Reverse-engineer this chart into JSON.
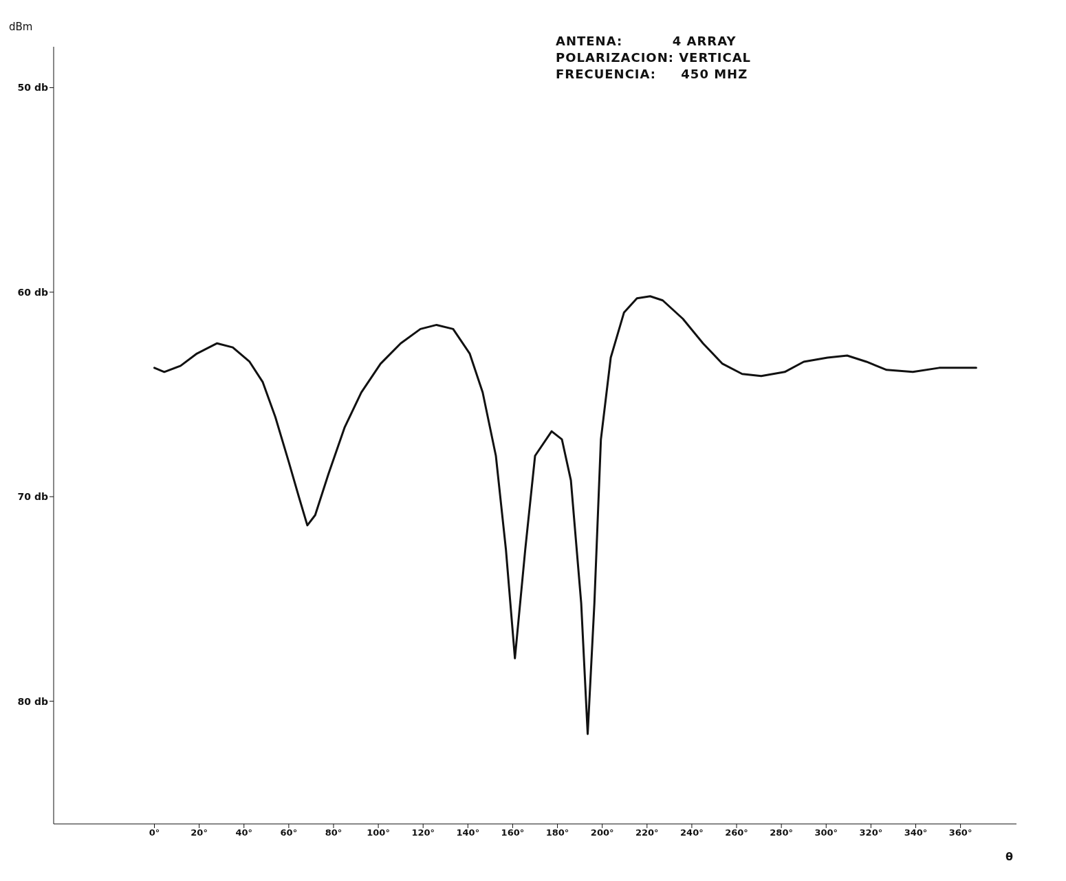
{
  "chart_data": {
    "type": "line",
    "xlabel": "θ",
    "ylabel": "dBm",
    "annotations": [
      "ANTENA:          4 ARRAY",
      "POLARIZACION: VERTICAL",
      "FRECUENCIA:     450 MHZ"
    ],
    "x": [
      0,
      4.4,
      11.7,
      19,
      28,
      35,
      42.5,
      48.4,
      54,
      60,
      64.5,
      68.3,
      71.8,
      77.7,
      85,
      92.4,
      101,
      110,
      118.8,
      126,
      133.4,
      140.8,
      146.6,
      152.5,
      157,
      161,
      165.6,
      170,
      177.4,
      182,
      186,
      190.6,
      193.5,
      196.5,
      199.4,
      203.8,
      209.7,
      215.5,
      221.4,
      227,
      236,
      245,
      253.7,
      262.5,
      271,
      281.5,
      290,
      300.6,
      309.4,
      318,
      327,
      338.7,
      350.5,
      360.8,
      367
    ],
    "series": [
      {
        "color": "#111111",
        "values": [
          63.7,
          63.9,
          63.6,
          63.0,
          62.5,
          62.7,
          63.4,
          64.4,
          66.1,
          68.3,
          70,
          71.4,
          70.9,
          68.9,
          66.6,
          64.9,
          63.5,
          62.5,
          61.8,
          61.6,
          61.8,
          63.0,
          64.9,
          68.0,
          72.6,
          77.9,
          72.6,
          68.0,
          66.8,
          67.2,
          69.2,
          75.2,
          81.6,
          75.2,
          67.2,
          63.2,
          61.0,
          60.3,
          60.2,
          60.4,
          61.3,
          62.5,
          63.5,
          64.0,
          64.1,
          63.9,
          63.4,
          63.2,
          63.1,
          63.4,
          63.8,
          63.9,
          63.7,
          63.7,
          63.7
        ]
      }
    ],
    "xlim": [
      -45,
      385
    ],
    "xticks": [
      {
        "value": 0,
        "label": "0°"
      },
      {
        "value": 20,
        "label": "20°"
      },
      {
        "value": 40,
        "label": "40°"
      },
      {
        "value": 60,
        "label": "60°"
      },
      {
        "value": 80,
        "label": "80°"
      },
      {
        "value": 100,
        "label": "100°"
      },
      {
        "value": 120,
        "label": "120°"
      },
      {
        "value": 140,
        "label": "140°"
      },
      {
        "value": 160,
        "label": "160°"
      },
      {
        "value": 180,
        "label": "180°"
      },
      {
        "value": 200,
        "label": "200°"
      },
      {
        "value": 220,
        "label": "220°"
      },
      {
        "value": 240,
        "label": "240°"
      },
      {
        "value": 260,
        "label": "260°"
      },
      {
        "value": 280,
        "label": "280°"
      },
      {
        "value": 300,
        "label": "300°"
      },
      {
        "value": 320,
        "label": "320°"
      },
      {
        "value": 340,
        "label": "340°"
      },
      {
        "value": 360,
        "label": "360°"
      }
    ],
    "ylim": [
      86,
      48
    ],
    "yticks": [
      {
        "value": 50,
        "label": "50 db"
      },
      {
        "value": 60,
        "label": "60 db"
      },
      {
        "value": 70,
        "label": "70 db"
      },
      {
        "value": 80,
        "label": "80 db"
      }
    ],
    "grid": false,
    "legend": false,
    "marker": "none",
    "line_style": "solid"
  }
}
